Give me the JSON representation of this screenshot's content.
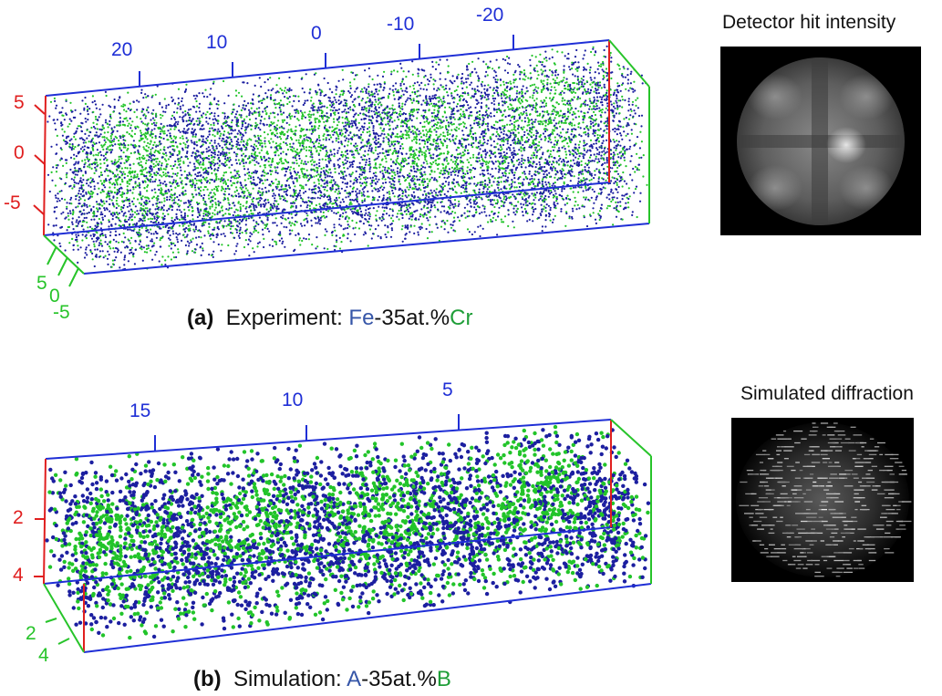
{
  "panel_a": {
    "x_ticks": [
      "20",
      "10",
      "0",
      "-10",
      "-20"
    ],
    "y_ticks": [
      "5",
      "0",
      "-5"
    ],
    "z_ticks": [
      "5",
      "0",
      "-5"
    ],
    "caption_label": "(a)",
    "caption_prefix": "Experiment: ",
    "element_a": "Fe",
    "caption_mid": "-35at.%",
    "element_b": "Cr",
    "side_title": "Detector hit intensity"
  },
  "panel_b": {
    "x_ticks": [
      "15",
      "10",
      "5"
    ],
    "y_ticks": [
      "2",
      "4"
    ],
    "z_ticks": [
      "2",
      "4"
    ],
    "caption_label": "(b)",
    "caption_prefix": "Simulation: ",
    "element_a": "A",
    "caption_mid": "-35at.%",
    "element_b": "B",
    "side_title": "Simulated diffraction"
  },
  "colors": {
    "atom_a": "#1c1fa0",
    "atom_b": "#22c42a",
    "x_axis": "#1f2fd6",
    "y_axis": "#e01f1f",
    "z_axis": "#27c42a"
  }
}
